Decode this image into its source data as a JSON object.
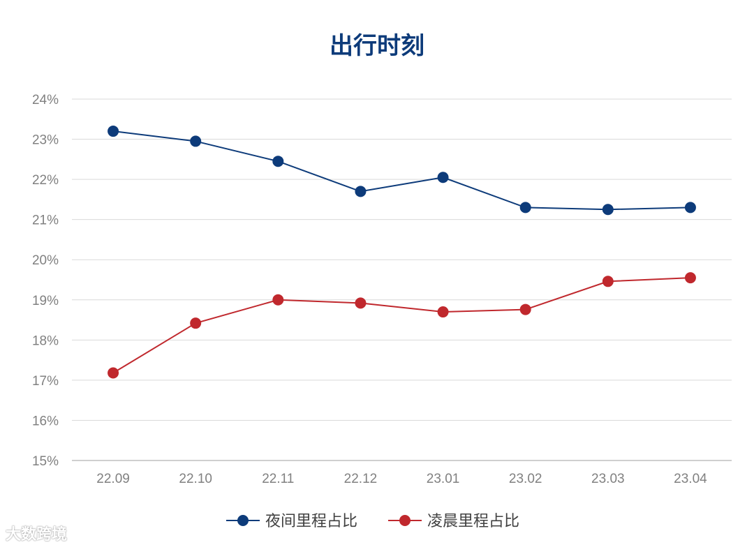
{
  "chart_data": {
    "type": "line",
    "title": "出行时刻",
    "categories": [
      "22.09",
      "22.10",
      "22.11",
      "22.12",
      "23.01",
      "23.02",
      "23.03",
      "23.04"
    ],
    "series": [
      {
        "name": "夜间里程占比",
        "color": "#0d3b7a",
        "values": [
          23.2,
          22.95,
          22.45,
          21.7,
          22.05,
          21.3,
          21.25,
          21.3
        ]
      },
      {
        "name": "凌晨里程占比",
        "color": "#c0282d",
        "values": [
          17.18,
          18.42,
          19.0,
          18.92,
          18.7,
          18.76,
          19.46,
          19.55
        ]
      }
    ],
    "ylim": [
      15,
      24
    ],
    "yticks": [
      "15%",
      "16%",
      "17%",
      "18%",
      "19%",
      "20%",
      "21%",
      "22%",
      "23%",
      "24%"
    ],
    "grid": true,
    "legend_position": "bottom"
  },
  "watermark": "大数跨境"
}
